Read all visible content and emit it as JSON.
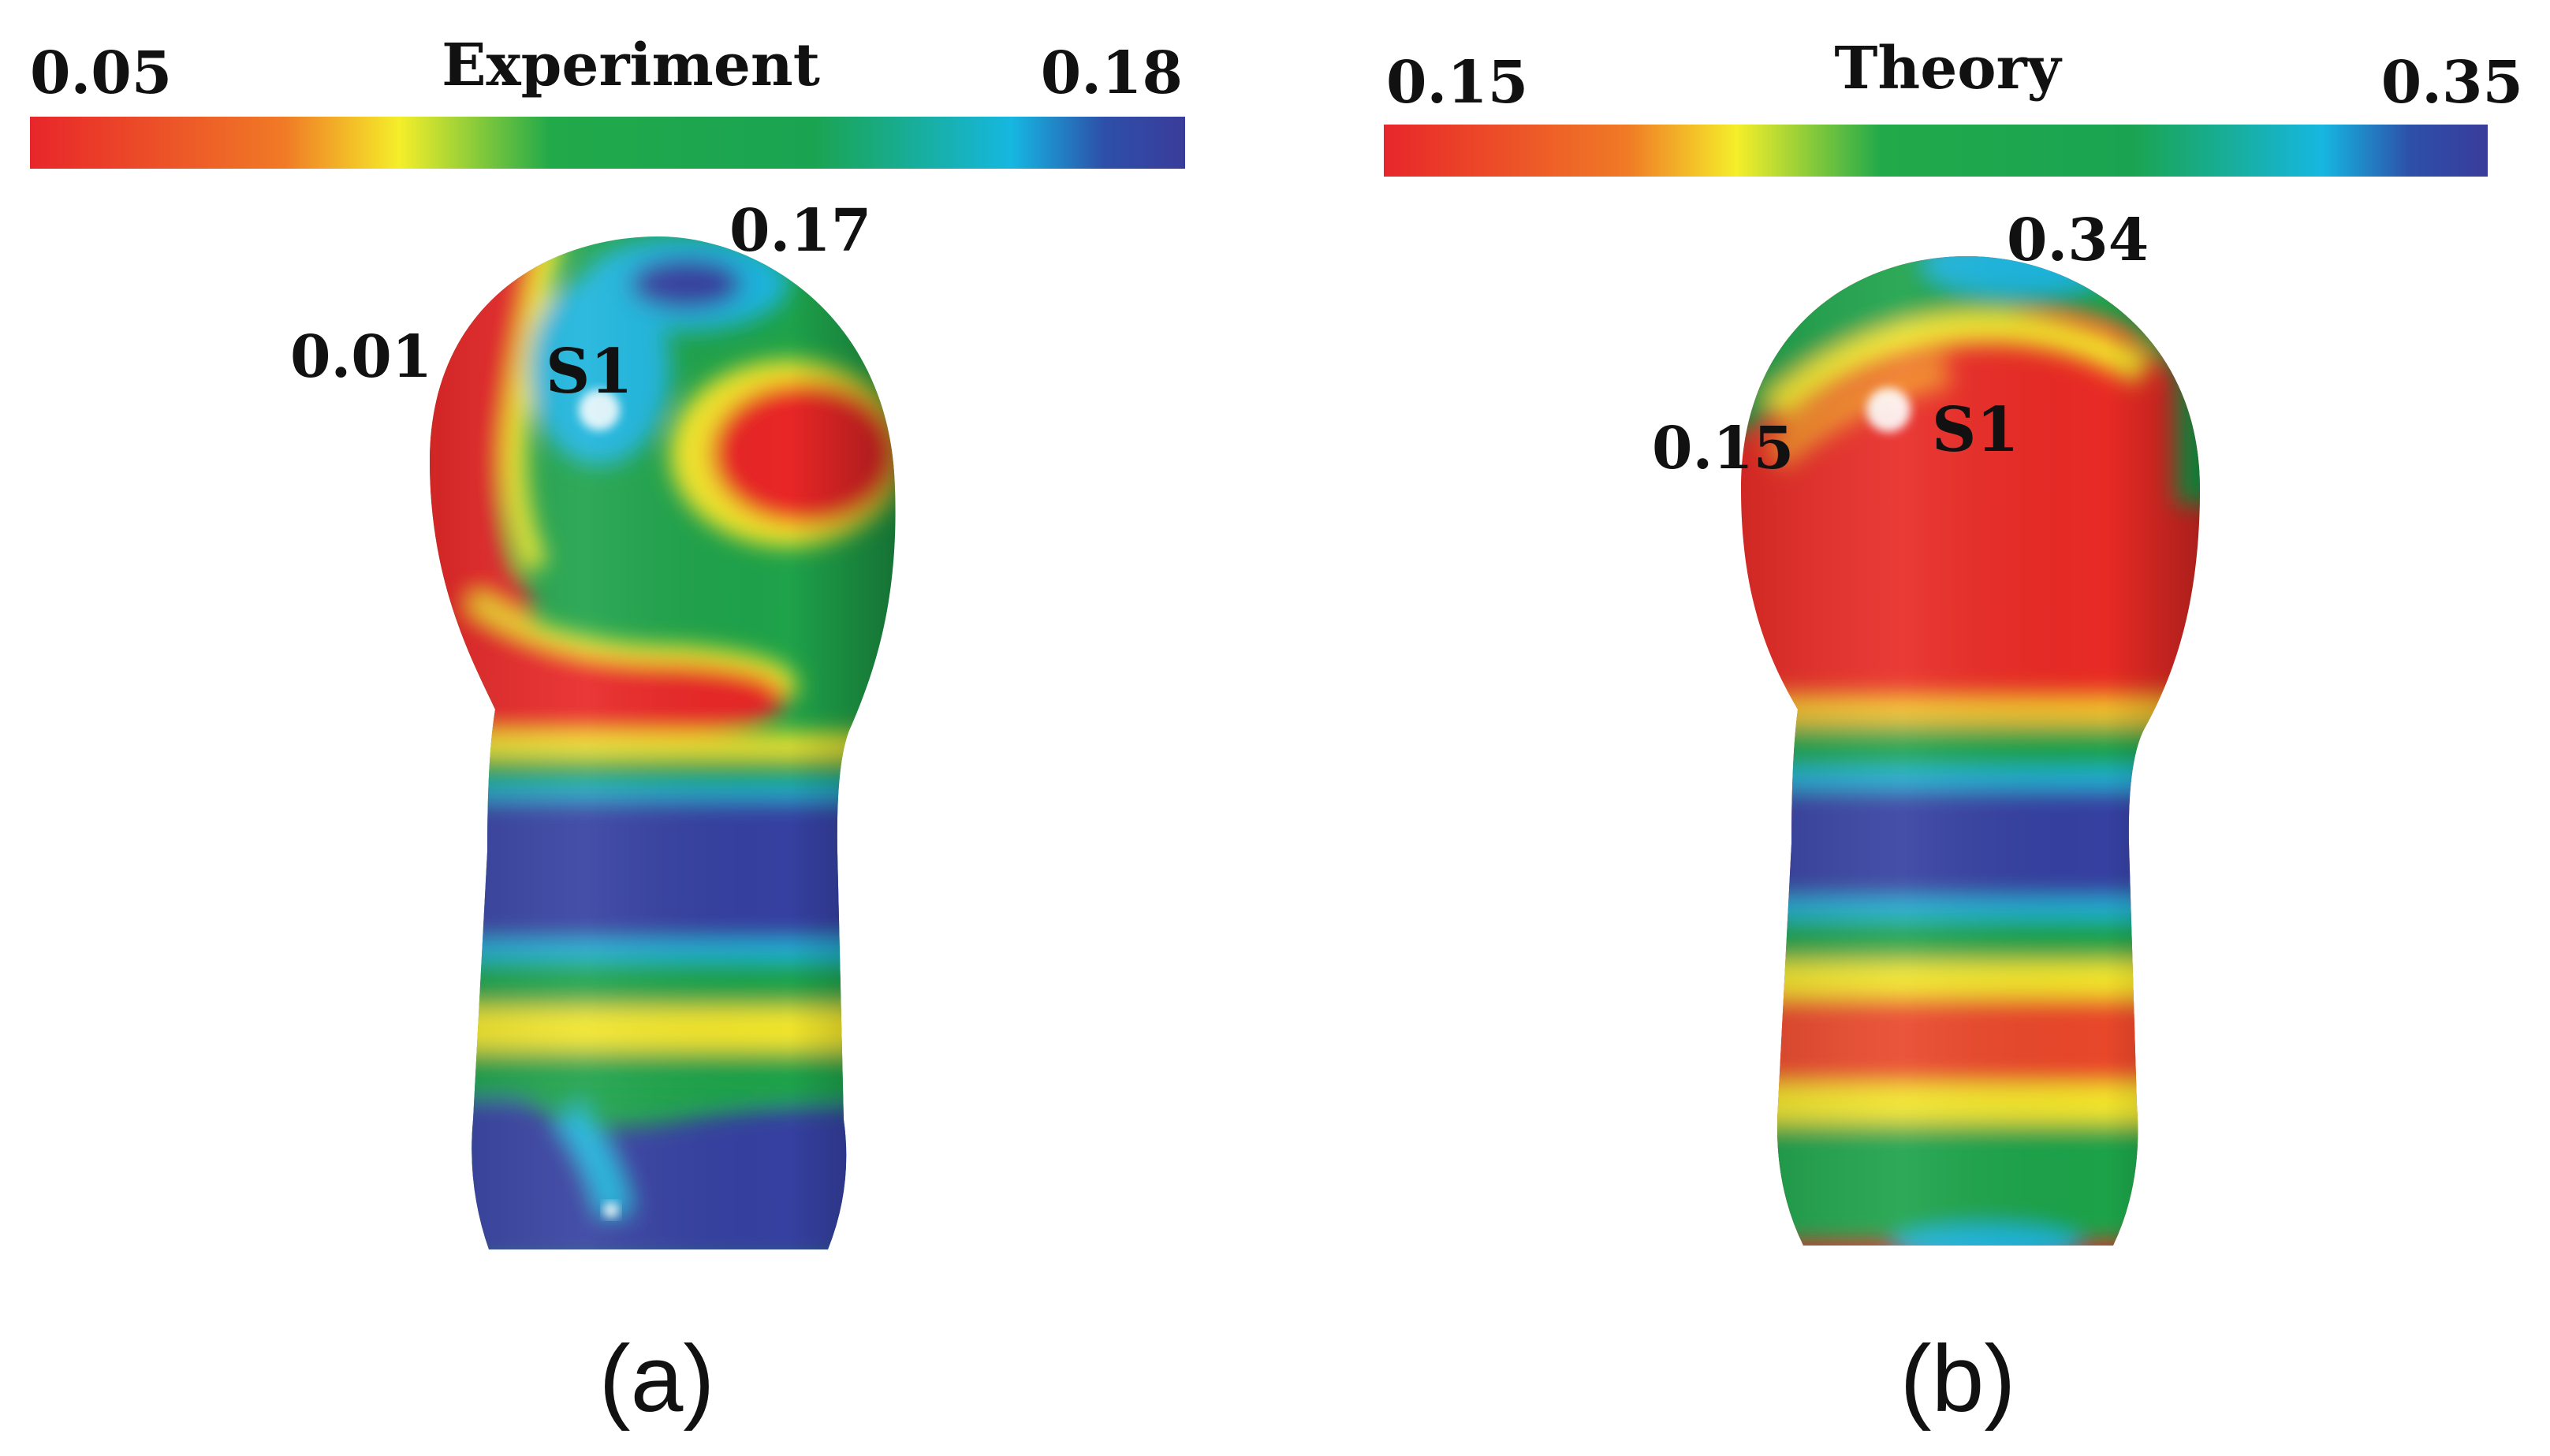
{
  "colormap": {
    "stops": [
      "#e8262a",
      "#f07a26",
      "#f5ee2a",
      "#22a94a",
      "#1aa452",
      "#16b7e1",
      "#2d4fa9",
      "#3a3c9a"
    ]
  },
  "panels": [
    {
      "id": "a",
      "caption": "(a)",
      "colorbar": {
        "title": "Experiment",
        "min_label": "0.05",
        "max_label": "0.18"
      },
      "annotations": {
        "high": "0.17",
        "low": "0.01",
        "point": "S1"
      }
    },
    {
      "id": "b",
      "caption": "(b)",
      "colorbar": {
        "title": "Theory",
        "min_label": "0.15",
        "max_label": "0.35"
      },
      "annotations": {
        "high": "0.34",
        "low": "0.15",
        "point": "S1"
      }
    }
  ]
}
